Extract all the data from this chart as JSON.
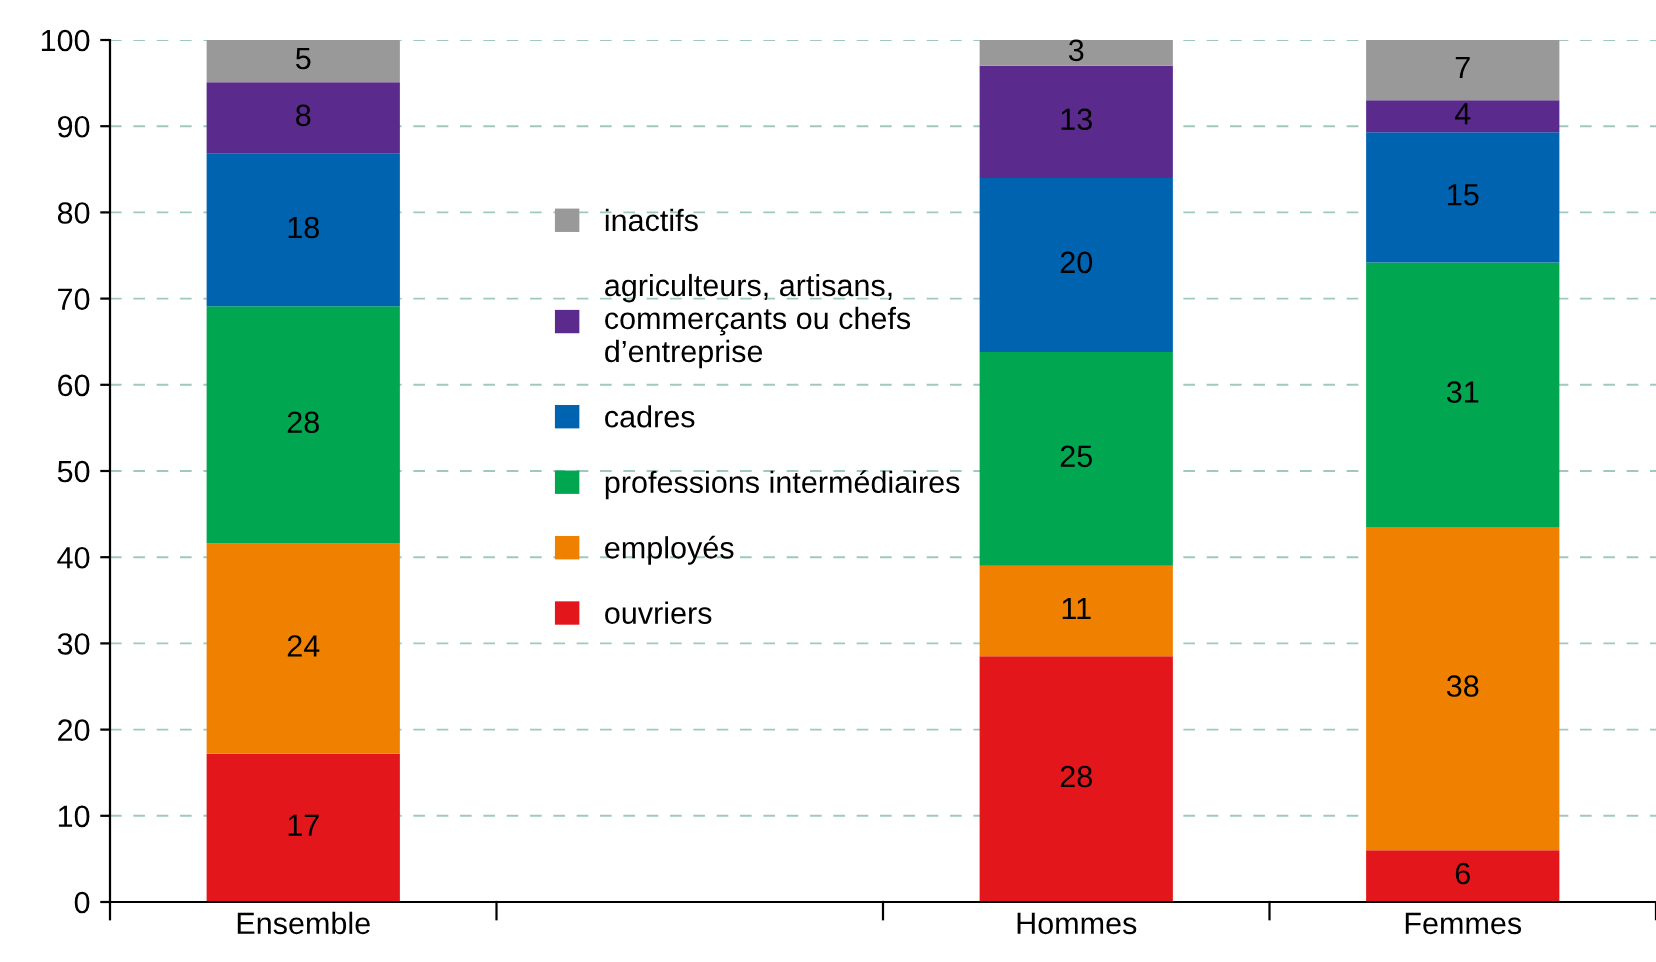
{
  "chart_data": {
    "type": "bar",
    "stacked": true,
    "categories": [
      "Ensemble",
      null,
      "Hommes",
      "Femmes"
    ],
    "series": [
      {
        "name": "ouvriers",
        "color": "#e2161b",
        "values": [
          17.2,
          null,
          28.5,
          6.0
        ],
        "value_labels": [
          "17",
          null,
          "28",
          "6"
        ]
      },
      {
        "name": "employés",
        "color": "#f08000",
        "values": [
          24.4,
          null,
          10.5,
          37.5
        ],
        "value_labels": [
          "24",
          null,
          "11",
          "38"
        ]
      },
      {
        "name": "professions intermédiaires",
        "color": "#00a650",
        "values": [
          27.5,
          null,
          24.8,
          30.7
        ],
        "value_labels": [
          "28",
          null,
          "25",
          "31"
        ]
      },
      {
        "name": "cadres",
        "color": "#0063b0",
        "values": [
          17.7,
          null,
          20.2,
          15.1
        ],
        "value_labels": [
          "18",
          null,
          "20",
          "15"
        ]
      },
      {
        "name": "agriculteurs, artisans,\ncommerçants ou chefs\nd’entreprise",
        "color": "#5a2a8c",
        "values": [
          8.3,
          null,
          13.0,
          3.7
        ],
        "value_labels": [
          "8",
          null,
          "13",
          "4"
        ]
      },
      {
        "name": "inactifs",
        "color": "#999999",
        "values": [
          4.9,
          null,
          3.0,
          7.0
        ],
        "value_labels": [
          "5",
          null,
          "3",
          "7"
        ]
      }
    ],
    "ylim": [
      0,
      100
    ],
    "yticks": [
      0,
      10,
      20,
      30,
      40,
      50,
      60,
      70,
      80,
      90,
      100
    ],
    "grid": "y",
    "legend": "center left"
  }
}
